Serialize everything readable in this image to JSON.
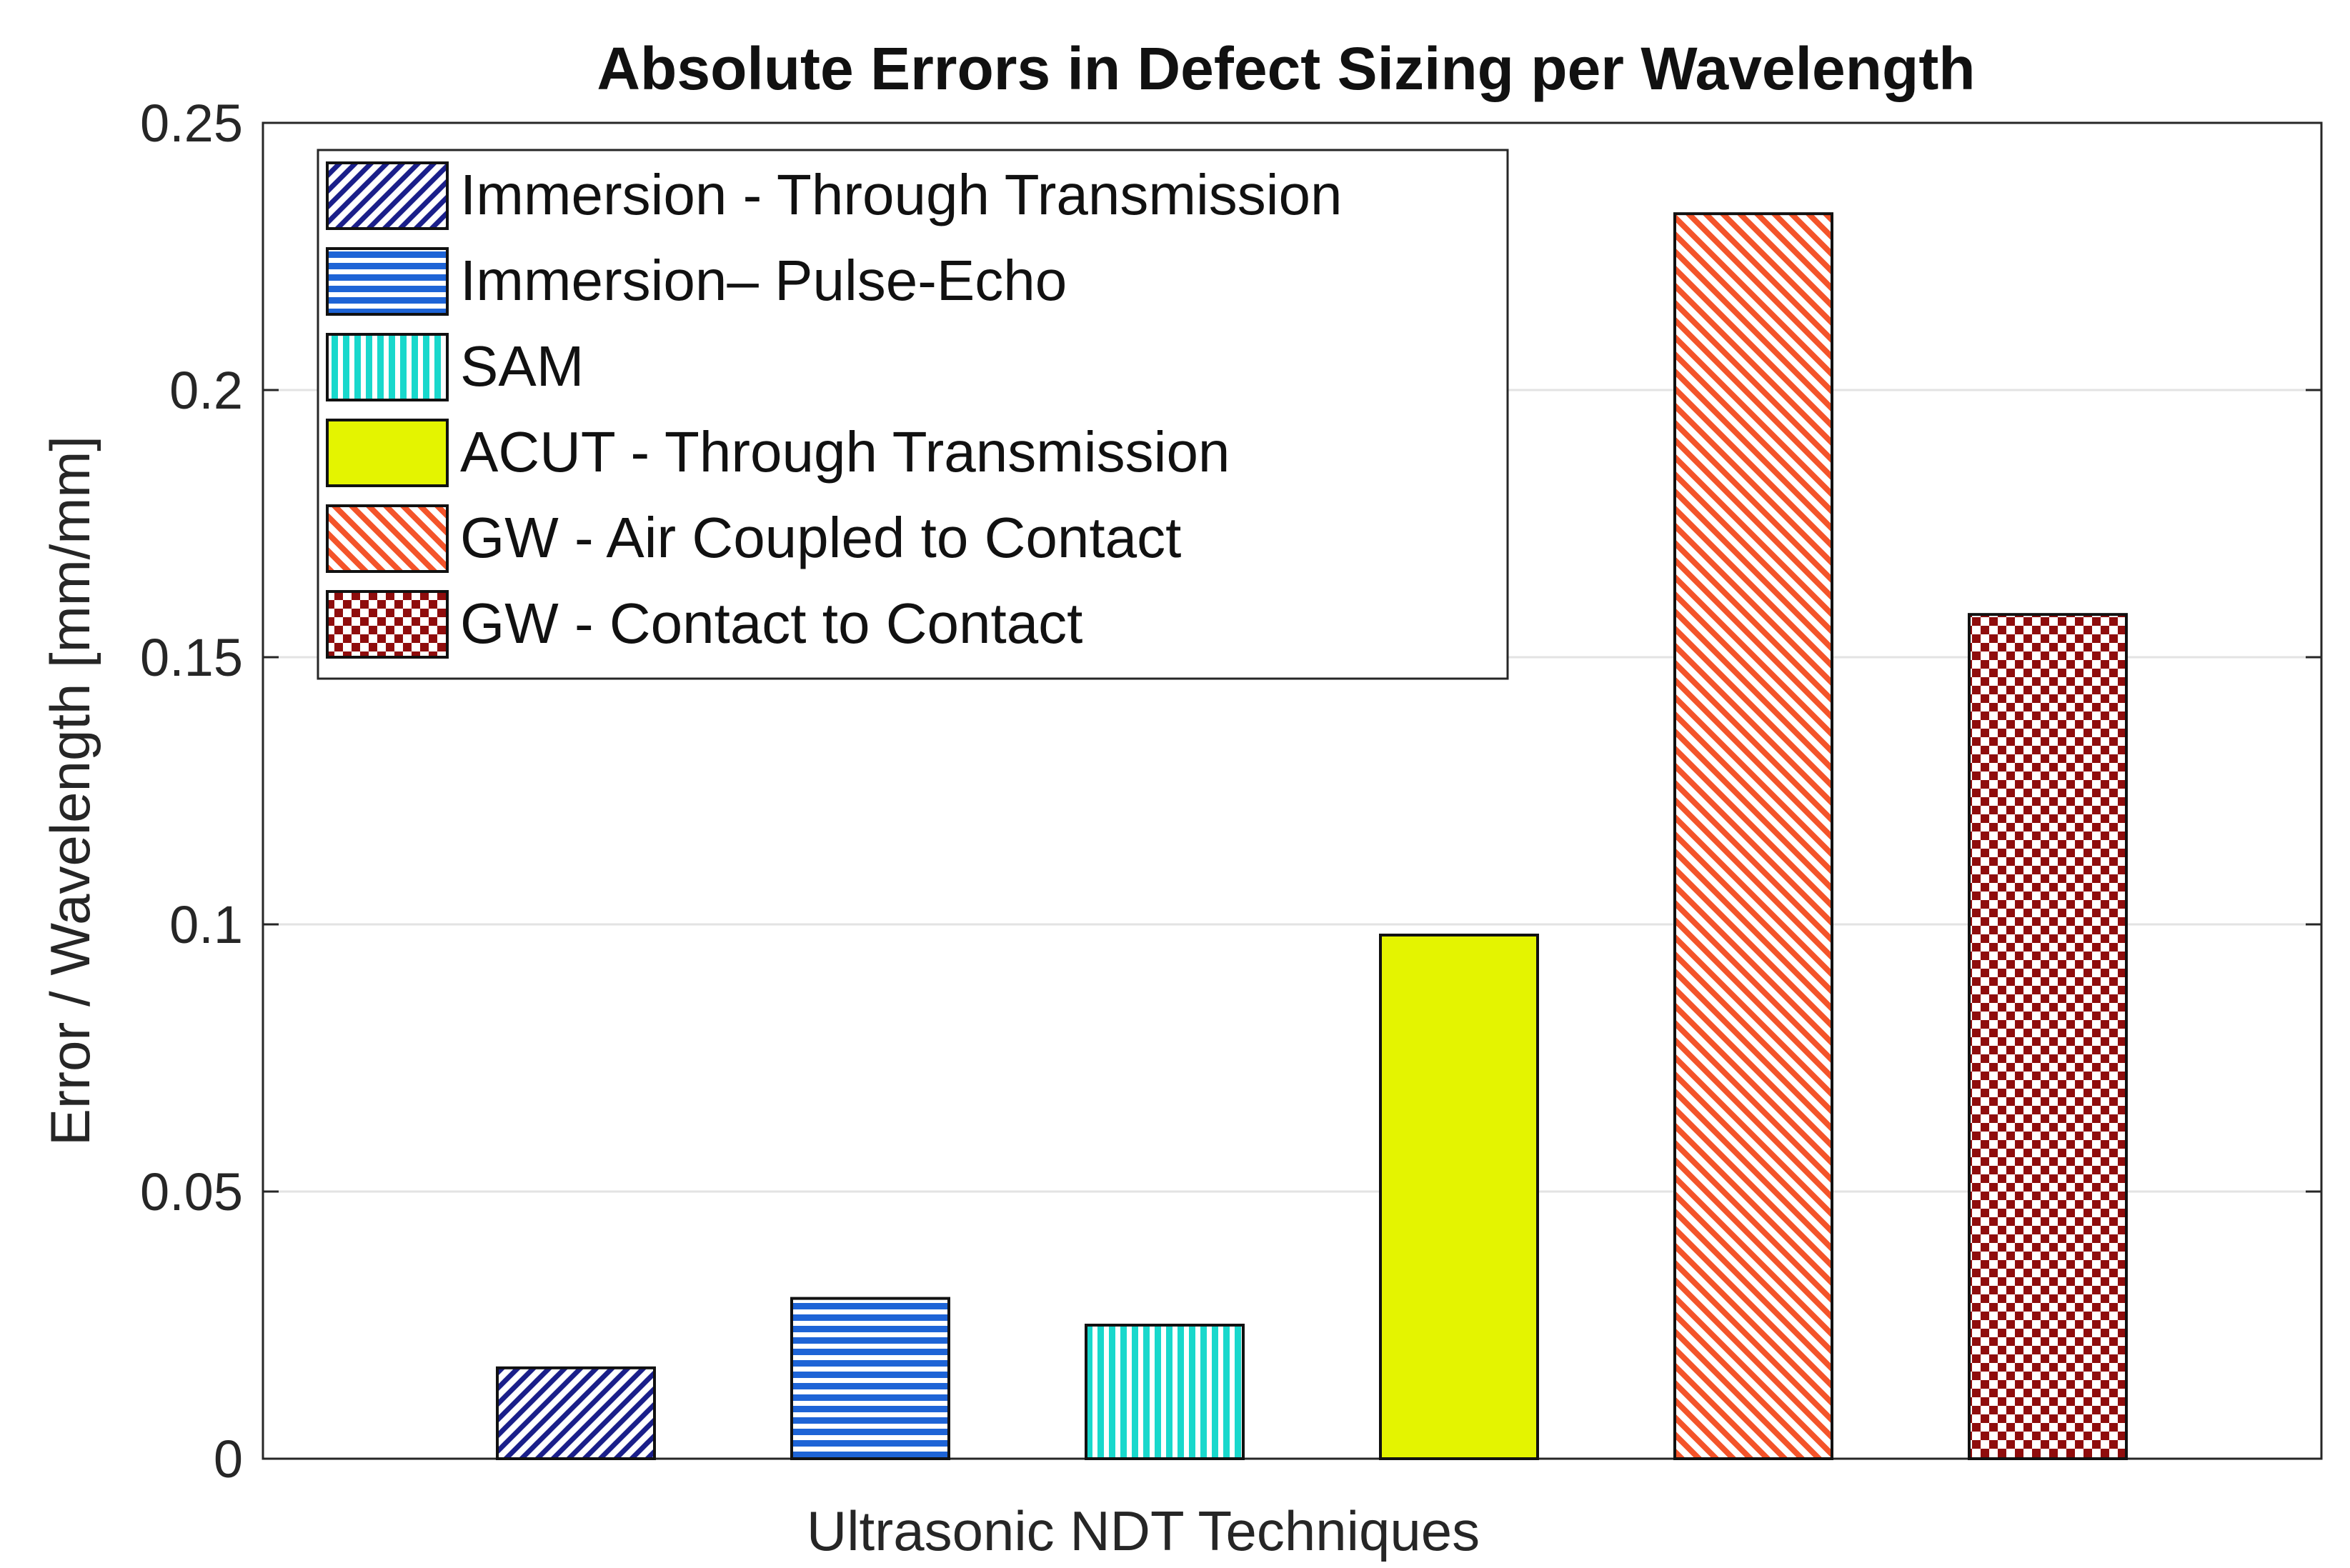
{
  "chart_data": {
    "type": "bar",
    "title": "Absolute Errors in Defect Sizing per Wavelength",
    "xlabel": "Ultrasonic NDT Techniques",
    "ylabel": "Error / Wavelength [mm/mm]",
    "ylim": [
      0,
      0.25
    ],
    "yticks": [
      0,
      0.05,
      0.1,
      0.15,
      0.2,
      0.25
    ],
    "ytick_labels": [
      "0",
      "0.05",
      "0.1",
      "0.15",
      "0.2",
      "0.25"
    ],
    "grid": true,
    "legend_position": "top-left",
    "series": [
      {
        "name": "Immersion - Through Transmission",
        "value": 0.017,
        "color": "#1a1f8a",
        "pattern": "diagonal-hatch-up"
      },
      {
        "name": "Immersion– Pulse-Echo",
        "value": 0.03,
        "color": "#1e64d6",
        "pattern": "horizontal-lines"
      },
      {
        "name": "SAM",
        "value": 0.025,
        "color": "#19d8cc",
        "pattern": "vertical-lines"
      },
      {
        "name": "ACUT - Through Transmission",
        "value": 0.098,
        "color": "#e4f400",
        "pattern": "solid"
      },
      {
        "name": "GW - Air Coupled to Contact",
        "value": 0.233,
        "color": "#f4542a",
        "pattern": "diagonal-hatch-down"
      },
      {
        "name": "GW - Contact to Contact",
        "value": 0.158,
        "color": "#8f0d0d",
        "pattern": "checkerboard"
      }
    ]
  }
}
